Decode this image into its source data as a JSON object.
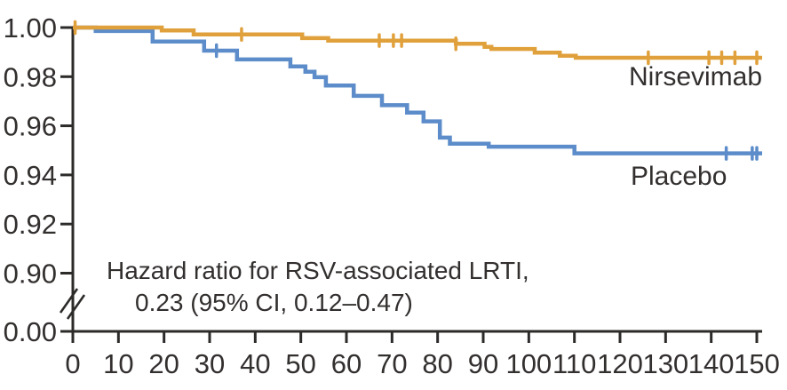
{
  "chart_data": {
    "type": "line",
    "subtype": "kaplan-meier-step",
    "title": "",
    "xlabel": "",
    "ylabel": "",
    "xlim": [
      0,
      150
    ],
    "ylim_shown": [
      0.9,
      1.0
    ],
    "axis_break": true,
    "grid": false,
    "legend_position": "inline-right",
    "x_ticks": [
      0,
      10,
      20,
      30,
      40,
      50,
      60,
      70,
      80,
      90,
      100,
      110,
      120,
      130,
      140,
      150
    ],
    "y_ticks": [
      "1.00",
      "0.98",
      "0.96",
      "0.94",
      "0.92",
      "0.90",
      "0.00"
    ],
    "annotation": [
      "Hazard ratio for RSV-associated LRTI,",
      "0.23 (95% CI, 0.12–0.47)"
    ],
    "axis_color": "#2D2B2A",
    "text_color": "#322F2E",
    "series": [
      {
        "name": "Nirsevimab",
        "color": "#E0A13C",
        "steps": [
          [
            0,
            1.0
          ],
          [
            19.5,
            0.9988
          ],
          [
            26.5,
            0.9972
          ],
          [
            50.3,
            0.9957
          ],
          [
            56,
            0.9947
          ],
          [
            84,
            0.9934
          ],
          [
            90.3,
            0.9921
          ],
          [
            91.8,
            0.9913
          ],
          [
            101.3,
            0.9898
          ],
          [
            106.8,
            0.9885
          ],
          [
            110.3,
            0.9877
          ]
        ],
        "final_value": 0.9877,
        "censor_marks_x": [
          0.5,
          37,
          67.2,
          70.3,
          72.1,
          84,
          126.2,
          139.5,
          142.3,
          145.2,
          150
        ]
      },
      {
        "name": "Placebo",
        "color": "#5C8CC9",
        "steps": [
          [
            0,
            1.0
          ],
          [
            5,
            0.9986
          ],
          [
            17.5,
            0.9943
          ],
          [
            28.8,
            0.9906
          ],
          [
            36,
            0.987
          ],
          [
            47.7,
            0.9842
          ],
          [
            51,
            0.982
          ],
          [
            53,
            0.9798
          ],
          [
            55.5,
            0.9764
          ],
          [
            61.6,
            0.9722
          ],
          [
            67.8,
            0.9684
          ],
          [
            73.3,
            0.9654
          ],
          [
            76.9,
            0.9618
          ],
          [
            80.5,
            0.9552
          ],
          [
            82.7,
            0.9527
          ],
          [
            91.2,
            0.9515
          ],
          [
            110,
            0.9488
          ]
        ],
        "final_value": 0.9488,
        "censor_marks_x": [
          31.5,
          143.3,
          149,
          150
        ]
      }
    ]
  }
}
